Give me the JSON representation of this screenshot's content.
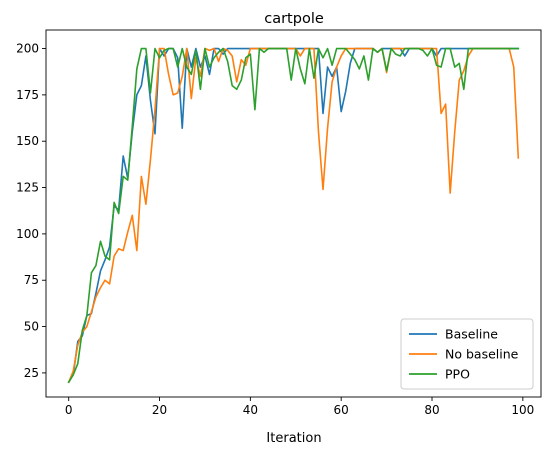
{
  "chart_data": {
    "type": "line",
    "title": "cartpole",
    "xlabel": "Iteration",
    "ylabel": "",
    "xlim": [
      -5,
      104
    ],
    "ylim": [
      12,
      210
    ],
    "xticks": [
      0,
      20,
      40,
      60,
      80,
      100
    ],
    "yticks": [
      25,
      50,
      75,
      100,
      125,
      150,
      175,
      200
    ],
    "grid": false,
    "legend_position": "lower right",
    "x": [
      0,
      1,
      2,
      3,
      4,
      5,
      6,
      7,
      8,
      9,
      10,
      11,
      12,
      13,
      14,
      15,
      16,
      17,
      18,
      19,
      20,
      21,
      22,
      23,
      24,
      25,
      26,
      27,
      28,
      29,
      30,
      31,
      32,
      33,
      34,
      35,
      36,
      37,
      38,
      39,
      40,
      41,
      42,
      43,
      44,
      45,
      46,
      47,
      48,
      49,
      50,
      51,
      52,
      53,
      54,
      55,
      56,
      57,
      58,
      59,
      60,
      61,
      62,
      63,
      64,
      65,
      66,
      67,
      68,
      69,
      70,
      71,
      72,
      73,
      74,
      75,
      76,
      77,
      78,
      79,
      80,
      81,
      82,
      83,
      84,
      85,
      86,
      87,
      88,
      89,
      90,
      91,
      92,
      93,
      94,
      95,
      96,
      97,
      98,
      99
    ],
    "series": [
      {
        "name": "Baseline",
        "color": "#1f77b4",
        "values": [
          20,
          24,
          42,
          45,
          56,
          57,
          68,
          80,
          86,
          93,
          115,
          113,
          142,
          130,
          155,
          175,
          180,
          196,
          172,
          154,
          200,
          196,
          200,
          200,
          195,
          157,
          200,
          190,
          200,
          190,
          196,
          186,
          200,
          200,
          197,
          200,
          200,
          200,
          200,
          200,
          200,
          200,
          200,
          200,
          200,
          200,
          200,
          200,
          200,
          200,
          200,
          200,
          200,
          200,
          200,
          200,
          165,
          190,
          185,
          190,
          166,
          177,
          192,
          200,
          200,
          200,
          200,
          200,
          198,
          200,
          200,
          200,
          200,
          200,
          196,
          200,
          200,
          200,
          200,
          200,
          200,
          196,
          200,
          200,
          200,
          200,
          200,
          200,
          200,
          200,
          200,
          200,
          200,
          200,
          200,
          200,
          200,
          200,
          200,
          200
        ]
      },
      {
        "name": "No baseline",
        "color": "#ff7f0e",
        "values": [
          20,
          26,
          40,
          47,
          50,
          58,
          66,
          71,
          75,
          73,
          88,
          92,
          91,
          101,
          110,
          91,
          131,
          116,
          140,
          167,
          200,
          200,
          186,
          175,
          176,
          185,
          200,
          173,
          195,
          185,
          200,
          199,
          200,
          193,
          200,
          199,
          196,
          182,
          194,
          191,
          200,
          200,
          200,
          200,
          200,
          200,
          200,
          200,
          200,
          200,
          200,
          196,
          200,
          200,
          200,
          155,
          124,
          157,
          182,
          190,
          196,
          200,
          200,
          200,
          200,
          200,
          200,
          200,
          198,
          200,
          187,
          200,
          200,
          200,
          200,
          200,
          200,
          200,
          200,
          200,
          200,
          200,
          165,
          170,
          122,
          155,
          183,
          188,
          196,
          200,
          200,
          200,
          200,
          200,
          200,
          200,
          200,
          200,
          190,
          141
        ]
      },
      {
        "name": "PPO",
        "color": "#2ca02c",
        "values": [
          20,
          24,
          30,
          48,
          56,
          79,
          83,
          96,
          88,
          86,
          117,
          111,
          131,
          129,
          158,
          189,
          200,
          200,
          176,
          200,
          195,
          199,
          200,
          200,
          190,
          200,
          190,
          186,
          199,
          178,
          200,
          190,
          195,
          198,
          200,
          193,
          180,
          178,
          183,
          195,
          197,
          167,
          200,
          198,
          200,
          200,
          200,
          200,
          200,
          183,
          200,
          189,
          181,
          200,
          184,
          200,
          195,
          200,
          191,
          200,
          200,
          200,
          197,
          194,
          189,
          196,
          183,
          200,
          198,
          200,
          188,
          200,
          197,
          196,
          200,
          200,
          200,
          200,
          199,
          196,
          200,
          191,
          190,
          200,
          200,
          190,
          192,
          178,
          200,
          200,
          200,
          200,
          200,
          200,
          200,
          200,
          200,
          200,
          200,
          200
        ]
      }
    ]
  }
}
